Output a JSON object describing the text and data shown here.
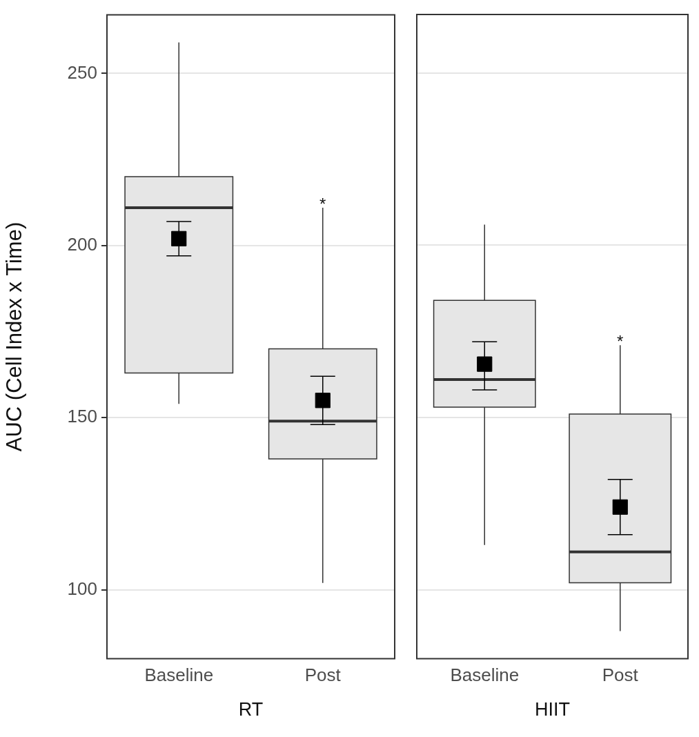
{
  "chart_data": [
    {
      "type": "box",
      "xlabel": "RT",
      "ylabel": "AUC (Cell Index x Time)",
      "categories": [
        "Baseline",
        "Post"
      ],
      "ylim": [
        80,
        267
      ],
      "yticks": [
        100,
        150,
        200,
        250
      ],
      "grid": "y",
      "legend": false,
      "series": [
        {
          "color": "#e6e6e6",
          "boxes": [
            {
              "low": 154,
              "q1": 163,
              "median": 211,
              "q3": 220,
              "high": 259
            },
            {
              "low": 102,
              "q1": 138,
              "median": 149,
              "q3": 170,
              "high": 211
            }
          ]
        },
        {
          "type": "scatter",
          "marker": "square",
          "color": "#000000",
          "x": [
            "Baseline",
            "Post"
          ],
          "values": [
            202,
            155
          ],
          "errors": [
            [
              197,
              207
            ],
            [
              148,
              162
            ]
          ]
        }
      ],
      "annotations": [
        {
          "text": "*",
          "x": "Post",
          "y": 211
        }
      ]
    },
    {
      "type": "box",
      "xlabel": "HIIT",
      "categories": [
        "Baseline",
        "Post"
      ],
      "ylim": [
        80,
        267
      ],
      "yticks": [
        100,
        150,
        200,
        250
      ],
      "grid": "y",
      "legend": false,
      "tick_labels": "x",
      "series": [
        {
          "color": "#e6e6e6",
          "boxes": [
            {
              "low": 113,
              "q1": 153,
              "median": 161,
              "q3": 184,
              "high": 206
            },
            {
              "low": 88,
              "q1": 102,
              "median": 111,
              "q3": 151,
              "high": 171
            }
          ]
        },
        {
          "type": "scatter",
          "marker": "square",
          "color": "#000000",
          "x": [
            "Baseline",
            "Post"
          ],
          "values": [
            165.5,
            124
          ],
          "errors": [
            [
              158,
              172
            ],
            [
              116,
              132
            ]
          ]
        }
      ],
      "annotations": [
        {
          "text": "*",
          "x": "Post",
          "y": 171
        }
      ]
    }
  ]
}
